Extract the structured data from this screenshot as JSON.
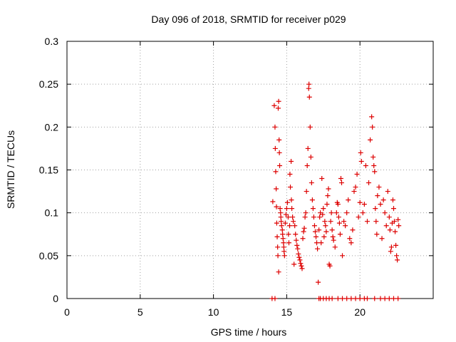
{
  "chart_data": {
    "type": "scatter",
    "title": "Day 096 of 2018, SRMTID for receiver p029",
    "xlabel": "GPS time / hours",
    "ylabel": "SRMTID / TECUs",
    "xlim": [
      0,
      25
    ],
    "ylim": [
      0,
      0.3
    ],
    "xticks": [
      "0",
      "5",
      "10",
      "15",
      "20"
    ],
    "xtick_values": [
      0,
      5,
      10,
      15,
      20
    ],
    "yticks": [
      "0",
      "0.05",
      "0.1",
      "0.15",
      "0.2",
      "0.25",
      "0.3"
    ],
    "ytick_values": [
      0,
      0.05,
      0.1,
      0.15,
      0.2,
      0.25,
      0.3
    ],
    "grid": true,
    "marker": "+",
    "color": "#dd0000",
    "series": [
      {
        "name": "SRMTID",
        "points": [
          [
            14.05,
            0.113
          ],
          [
            14.15,
            0.225
          ],
          [
            14.2,
            0.2
          ],
          [
            14.22,
            0.175
          ],
          [
            14.25,
            0.148
          ],
          [
            14.28,
            0.128
          ],
          [
            14.3,
            0.107
          ],
          [
            14.32,
            0.088
          ],
          [
            14.35,
            0.072
          ],
          [
            14.38,
            0.06
          ],
          [
            14.4,
            0.05
          ],
          [
            14.42,
            0.222
          ],
          [
            14.45,
            0.23
          ],
          [
            14.48,
            0.185
          ],
          [
            14.5,
            0.17
          ],
          [
            14.52,
            0.155
          ],
          [
            14.55,
            0.105
          ],
          [
            14.58,
            0.1
          ],
          [
            14.6,
            0.095
          ],
          [
            14.62,
            0.09
          ],
          [
            14.65,
            0.085
          ],
          [
            14.45,
            0.031
          ],
          [
            14.7,
            0.08
          ],
          [
            14.72,
            0.075
          ],
          [
            14.75,
            0.07
          ],
          [
            14.78,
            0.065
          ],
          [
            14.8,
            0.06
          ],
          [
            14.82,
            0.055
          ],
          [
            14.85,
            0.05
          ],
          [
            14.9,
            0.088
          ],
          [
            14.95,
            0.098
          ],
          [
            15.0,
            0.105
          ],
          [
            15.05,
            0.112
          ],
          [
            15.1,
            0.095
          ],
          [
            15.12,
            0.075
          ],
          [
            15.15,
            0.065
          ],
          [
            15.2,
            0.085
          ],
          [
            15.22,
            0.145
          ],
          [
            15.25,
            0.13
          ],
          [
            15.3,
            0.16
          ],
          [
            15.32,
            0.115
          ],
          [
            15.35,
            0.105
          ],
          [
            15.4,
            0.095
          ],
          [
            15.45,
            0.09
          ],
          [
            15.5,
            0.04
          ],
          [
            15.55,
            0.085
          ],
          [
            15.6,
            0.075
          ],
          [
            15.65,
            0.068
          ],
          [
            15.7,
            0.062
          ],
          [
            15.75,
            0.058
          ],
          [
            15.8,
            0.052
          ],
          [
            15.85,
            0.048
          ],
          [
            15.9,
            0.045
          ],
          [
            15.95,
            0.041
          ],
          [
            16.0,
            0.038
          ],
          [
            16.05,
            0.035
          ],
          [
            16.1,
            0.07
          ],
          [
            16.15,
            0.078
          ],
          [
            16.2,
            0.082
          ],
          [
            16.25,
            0.095
          ],
          [
            16.3,
            0.1
          ],
          [
            16.35,
            0.125
          ],
          [
            16.4,
            0.155
          ],
          [
            16.45,
            0.175
          ],
          [
            16.5,
            0.245
          ],
          [
            16.52,
            0.25
          ],
          [
            16.55,
            0.235
          ],
          [
            16.6,
            0.2
          ],
          [
            16.65,
            0.165
          ],
          [
            16.7,
            0.135
          ],
          [
            16.75,
            0.115
          ],
          [
            16.8,
            0.105
          ],
          [
            16.85,
            0.095
          ],
          [
            16.9,
            0.085
          ],
          [
            16.95,
            0.078
          ],
          [
            17.0,
            0.072
          ],
          [
            17.05,
            0.065
          ],
          [
            17.1,
            0.058
          ],
          [
            17.15,
            0.019
          ],
          [
            17.2,
            0.08
          ],
          [
            17.25,
            0.095
          ],
          [
            17.3,
            0.1
          ],
          [
            17.35,
            0.065
          ],
          [
            17.4,
            0.14
          ],
          [
            17.45,
            0.098
          ],
          [
            17.5,
            0.105
          ],
          [
            17.55,
            0.072
          ],
          [
            17.6,
            0.09
          ],
          [
            17.65,
            0.085
          ],
          [
            17.7,
            0.078
          ],
          [
            17.75,
            0.11
          ],
          [
            17.8,
            0.12
          ],
          [
            17.85,
            0.128
          ],
          [
            17.9,
            0.04
          ],
          [
            17.95,
            0.038
          ],
          [
            18.0,
            0.09
          ],
          [
            18.05,
            0.1
          ],
          [
            18.1,
            0.08
          ],
          [
            18.15,
            0.072
          ],
          [
            18.2,
            0.068
          ],
          [
            18.3,
            0.06
          ],
          [
            18.4,
            0.1
          ],
          [
            18.45,
            0.112
          ],
          [
            18.5,
            0.11
          ],
          [
            18.55,
            0.095
          ],
          [
            18.6,
            0.088
          ],
          [
            18.65,
            0.075
          ],
          [
            18.7,
            0.14
          ],
          [
            18.75,
            0.135
          ],
          [
            18.8,
            0.05
          ],
          [
            18.9,
            0.09
          ],
          [
            19.0,
            0.085
          ],
          [
            19.1,
            0.1
          ],
          [
            19.2,
            0.115
          ],
          [
            19.3,
            0.07
          ],
          [
            19.4,
            0.065
          ],
          [
            19.5,
            0.08
          ],
          [
            19.6,
            0.125
          ],
          [
            19.7,
            0.13
          ],
          [
            19.8,
            0.145
          ],
          [
            19.9,
            0.095
          ],
          [
            20.0,
            0.112
          ],
          [
            20.05,
            0.17
          ],
          [
            20.1,
            0.16
          ],
          [
            20.2,
            0.1
          ],
          [
            20.3,
            0.11
          ],
          [
            20.4,
            0.155
          ],
          [
            20.5,
            0.09
          ],
          [
            20.6,
            0.135
          ],
          [
            20.7,
            0.185
          ],
          [
            20.8,
            0.212
          ],
          [
            20.85,
            0.2
          ],
          [
            20.9,
            0.165
          ],
          [
            20.95,
            0.155
          ],
          [
            21.0,
            0.148
          ],
          [
            21.05,
            0.105
          ],
          [
            21.1,
            0.09
          ],
          [
            21.15,
            0.075
          ],
          [
            21.2,
            0.12
          ],
          [
            21.3,
            0.13
          ],
          [
            21.4,
            0.11
          ],
          [
            21.5,
            0.07
          ],
          [
            21.6,
            0.115
          ],
          [
            21.7,
            0.1
          ],
          [
            21.8,
            0.085
          ],
          [
            21.9,
            0.125
          ],
          [
            22.0,
            0.095
          ],
          [
            22.05,
            0.08
          ],
          [
            22.1,
            0.055
          ],
          [
            22.15,
            0.06
          ],
          [
            22.2,
            0.088
          ],
          [
            22.25,
            0.115
          ],
          [
            22.3,
            0.105
          ],
          [
            22.35,
            0.09
          ],
          [
            22.4,
            0.078
          ],
          [
            22.45,
            0.062
          ],
          [
            22.5,
            0.05
          ],
          [
            22.55,
            0.045
          ],
          [
            22.6,
            0.092
          ],
          [
            22.65,
            0.085
          ]
        ]
      }
    ],
    "baseline_points_x": [
      14.0,
      14.2,
      17.2,
      17.3,
      17.5,
      17.7,
      17.9,
      18.1,
      18.5,
      18.8,
      19.1,
      19.4,
      19.7,
      20.0,
      20.3,
      20.5,
      21.0,
      21.4,
      21.7,
      22.0,
      22.3,
      22.6
    ]
  }
}
